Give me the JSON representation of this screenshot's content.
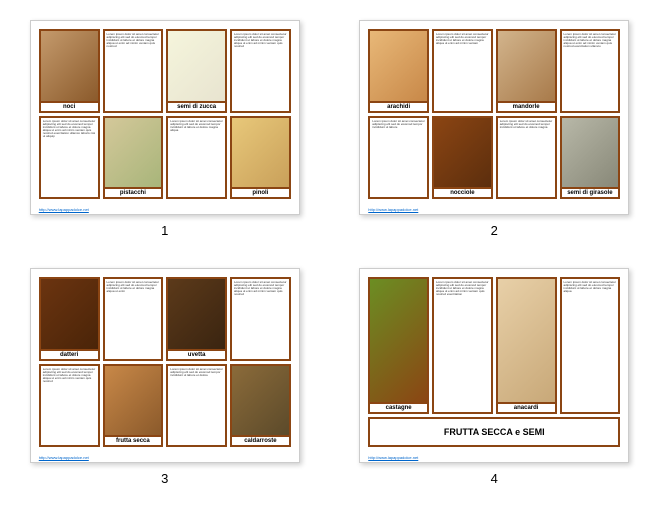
{
  "footer_link": "http://www.lapappadolce.net",
  "colors": {
    "border": "#8b4513",
    "bg": "#ffffff",
    "shadow": "rgba(0,0,0,0.2)"
  },
  "pages": [
    {
      "num": "1",
      "cards": [
        {
          "type": "img",
          "img": "i-noci",
          "label": "noci"
        },
        {
          "type": "text",
          "text": "Lorem ipsum dolor sit amet consectetur adipiscing elit sed do eiusmod tempor incididunt ut labore et dolore magna aliqua ut enim ad minim veniam quis nostrud"
        },
        {
          "type": "img",
          "img": "i-semi",
          "label": "semi di zucca"
        },
        {
          "type": "text",
          "text": "Lorem ipsum dolor sit amet consectetur adipiscing elit sed do eiusmod tempor incididunt ut labore et dolore magna aliqua ut enim ad minim veniam quis nostrud exercitation ullamco laboris nisi ut aliquip"
        },
        {
          "type": "img",
          "img": "i-pist",
          "label": "pistacchi"
        },
        {
          "type": "text",
          "text": "Lorem ipsum dolor sit amet consectetur adipiscing elit sed do eiusmod tempor incididunt ut labore et dolore magna aliqua"
        },
        {
          "type": "img",
          "img": "i-pino",
          "label": "pinoli"
        }
      ],
      "layout": [
        [
          0,
          1,
          2
        ],
        [
          "t",
          3,
          "t"
        ],
        [
          4,
          5,
          6
        ]
      ]
    },
    {
      "num": "2",
      "cards": [
        {
          "type": "img",
          "img": "i-arac",
          "label": "arachidi"
        },
        {
          "type": "text",
          "text": "Lorem ipsum dolor sit amet consectetur adipiscing elit sed do eiusmod tempor incididunt ut labore et dolore magna aliqua ut enim ad minim veniam"
        },
        {
          "type": "img",
          "img": "i-mand",
          "label": "mandorle"
        },
        {
          "type": "text",
          "text": "Lorem ipsum dolor sit amet consectetur adipiscing elit sed do eiusmod tempor incididunt ut labore et dolore magna aliqua ut enim ad minim veniam quis nostrud exercitation ullamco"
        },
        {
          "type": "text",
          "text": "Lorem ipsum dolor sit amet consectetur adipiscing elit sed do eiusmod tempor incididunt ut labore"
        },
        {
          "type": "img",
          "img": "i-nocc",
          "label": "nocciole"
        },
        {
          "type": "text",
          "text": "Lorem ipsum dolor sit amet consectetur adipiscing elit sed do eiusmod tempor incididunt ut labore et dolore magna"
        },
        {
          "type": "img",
          "img": "i-gira",
          "label": "semi di girasole"
        }
      ]
    },
    {
      "num": "3",
      "cards": [
        {
          "type": "img",
          "img": "i-datt",
          "label": "datteri"
        },
        {
          "type": "text",
          "text": "Lorem ipsum dolor sit amet consectetur adipiscing elit sed do eiusmod tempor incididunt ut labore et dolore magna aliqua ut enim"
        },
        {
          "type": "img",
          "img": "i-uvet",
          "label": "uvetta"
        },
        {
          "type": "text",
          "text": "Lorem ipsum dolor sit amet consectetur adipiscing elit sed do eiusmod tempor incididunt ut labore et dolore magna aliqua ut enim ad minim veniam quis nostrud"
        },
        {
          "type": "text",
          "text": "Lorem ipsum dolor sit amet consectetur adipiscing elit sed do eiusmod tempor incididunt ut labore et dolore magna aliqua ut enim ad minim veniam quis nostrud"
        },
        {
          "type": "img",
          "img": "i-frut",
          "label": "frutta secca"
        },
        {
          "type": "text",
          "text": "Lorem ipsum dolor sit amet consectetur adipiscing elit sed do eiusmod tempor incididunt ut labore et dolore"
        },
        {
          "type": "img",
          "img": "i-cald",
          "label": "caldarroste"
        }
      ]
    },
    {
      "num": "4",
      "title": "FRUTTA SECCA e SEMI",
      "cards": [
        {
          "type": "img",
          "img": "i-cast",
          "label": "castagne"
        },
        {
          "type": "text",
          "text": "Lorem ipsum dolor sit amet consectetur adipiscing elit sed do eiusmod tempor incididunt ut labore et dolore magna aliqua ut enim ad minim veniam quis nostrud exercitation"
        },
        {
          "type": "img",
          "img": "i-anac",
          "label": "anacardi"
        },
        {
          "type": "text",
          "text": "Lorem ipsum dolor sit amet consectetur adipiscing elit sed do eiusmod tempor incididunt ut labore et dolore magna aliqua"
        }
      ]
    }
  ]
}
